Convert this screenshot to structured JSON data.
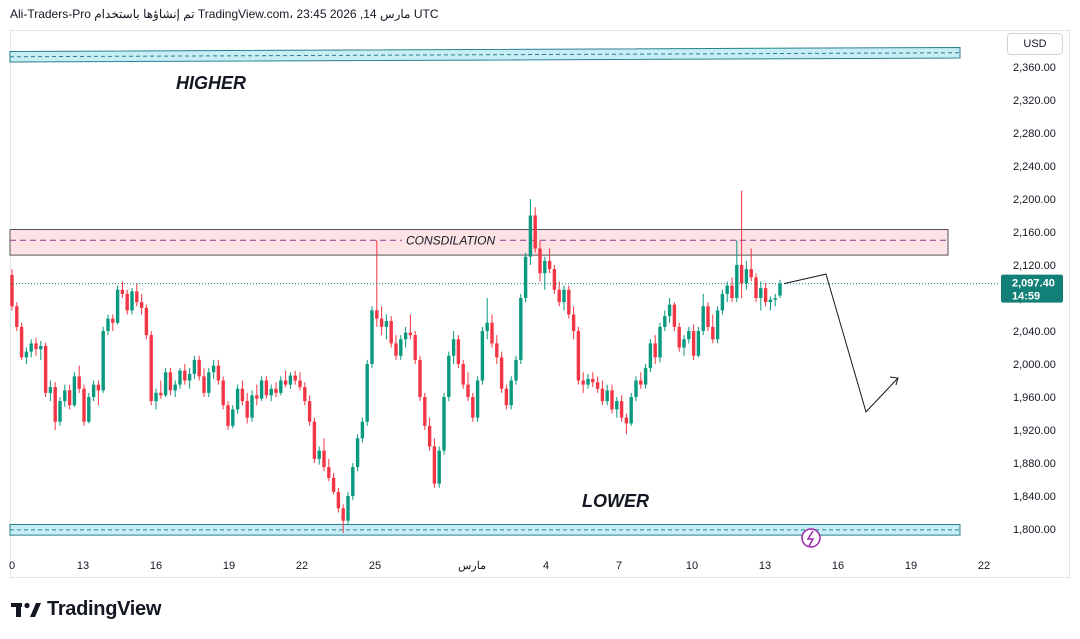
{
  "header": {
    "author": "Ali-Traders-Pro",
    "published_text": "تم إنشاؤها باستخدام",
    "site": "TradingView.com",
    "datetime_text": "مارس 14, 2026 23:45 UTC"
  },
  "footer": {
    "brand": "TradingView"
  },
  "colors": {
    "up": "#089981",
    "down": "#f23645",
    "zone_fill": "#c8eef5",
    "zone_stroke": "#2a7f8f",
    "consolidation_fill": "#fde2e6",
    "consolidation_line": "#8e3b8e",
    "price_badge": "#138077"
  },
  "chart_data": {
    "type": "candlestick",
    "currency": "USD",
    "price_range": [
      1790,
      2372
    ],
    "price_ticks": [
      "2,360.00",
      "2,320.00",
      "2,280.00",
      "2,240.00",
      "2,200.00",
      "2,160.00",
      "2,120.00",
      "2,080.00",
      "2,040.00",
      "2,000.00",
      "1,960.00",
      "1,920.00",
      "1,880.00",
      "1,840.00",
      "1,800.00"
    ],
    "time_ticks": [
      "0",
      "13",
      "16",
      "19",
      "22",
      "25",
      "مارس",
      "4",
      "7",
      "10",
      "13",
      "16",
      "19",
      "22"
    ],
    "last_price": "2,097.40",
    "countdown": "14:59",
    "zones": {
      "higher": {
        "label": "HIGHER",
        "low": 2366,
        "high": 2374
      },
      "lower": {
        "label": "LOWER",
        "low": 1795,
        "high": 1803
      },
      "consolidation": {
        "label": "CONSDILATION",
        "low": 2132,
        "high": 2163,
        "mid": 2150
      }
    },
    "projection": [
      {
        "t": 15.7,
        "price": 2109
      },
      {
        "t": 17.1,
        "price": 1942
      },
      {
        "t": 18.3,
        "price": 1983
      }
    ],
    "candles": [
      [
        2108,
        2115,
        2065,
        2070
      ],
      [
        2070,
        2075,
        2040,
        2045
      ],
      [
        2045,
        2050,
        2005,
        2008
      ],
      [
        2008,
        2020,
        2000,
        2015
      ],
      [
        2015,
        2030,
        2008,
        2025
      ],
      [
        2025,
        2032,
        2010,
        2018
      ],
      [
        2018,
        2028,
        2005,
        2022
      ],
      [
        2022,
        2026,
        1960,
        1965
      ],
      [
        1965,
        1980,
        1955,
        1972
      ],
      [
        1972,
        1978,
        1920,
        1930
      ],
      [
        1930,
        1960,
        1925,
        1955
      ],
      [
        1955,
        1975,
        1948,
        1968
      ],
      [
        1968,
        1975,
        1945,
        1950
      ],
      [
        1950,
        1990,
        1948,
        1985
      ],
      [
        1985,
        1998,
        1965,
        1970
      ],
      [
        1970,
        1975,
        1925,
        1930
      ],
      [
        1930,
        1965,
        1928,
        1960
      ],
      [
        1960,
        1980,
        1955,
        1975
      ],
      [
        1975,
        1980,
        1950,
        1968
      ],
      [
        1968,
        2045,
        1965,
        2040
      ],
      [
        2040,
        2060,
        2035,
        2055
      ],
      [
        2055,
        2060,
        2040,
        2050
      ],
      [
        2050,
        2095,
        2048,
        2090
      ],
      [
        2090,
        2100,
        2080,
        2085
      ],
      [
        2085,
        2090,
        2060,
        2065
      ],
      [
        2065,
        2092,
        2060,
        2088
      ],
      [
        2088,
        2098,
        2070,
        2075
      ],
      [
        2075,
        2085,
        2060,
        2068
      ],
      [
        2068,
        2072,
        2030,
        2035
      ],
      [
        2035,
        2040,
        1950,
        1955
      ],
      [
        1955,
        1970,
        1945,
        1965
      ],
      [
        1965,
        1980,
        1958,
        1962
      ],
      [
        1962,
        1995,
        1960,
        1990
      ],
      [
        1990,
        1995,
        1962,
        1968
      ],
      [
        1968,
        1980,
        1960,
        1975
      ],
      [
        1975,
        1995,
        1970,
        1992
      ],
      [
        1992,
        2000,
        1975,
        1980
      ],
      [
        1980,
        1995,
        1970,
        1988
      ],
      [
        1988,
        2010,
        1982,
        2005
      ],
      [
        2005,
        2010,
        1980,
        1985
      ],
      [
        1985,
        1995,
        1960,
        1965
      ],
      [
        1965,
        1995,
        1960,
        1990
      ],
      [
        1990,
        2005,
        1982,
        1998
      ],
      [
        1998,
        2005,
        1975,
        1980
      ],
      [
        1980,
        1985,
        1945,
        1950
      ],
      [
        1950,
        1955,
        1920,
        1925
      ],
      [
        1925,
        1950,
        1922,
        1945
      ],
      [
        1945,
        1975,
        1940,
        1970
      ],
      [
        1970,
        1980,
        1950,
        1955
      ],
      [
        1955,
        1965,
        1928,
        1935
      ],
      [
        1935,
        1968,
        1930,
        1962
      ],
      [
        1962,
        1975,
        1950,
        1958
      ],
      [
        1958,
        1985,
        1955,
        1980
      ],
      [
        1980,
        1985,
        1958,
        1962
      ],
      [
        1962,
        1975,
        1955,
        1970
      ],
      [
        1970,
        1978,
        1960,
        1965
      ],
      [
        1965,
        1985,
        1962,
        1980
      ],
      [
        1980,
        1992,
        1972,
        1975
      ],
      [
        1975,
        1990,
        1970,
        1986
      ],
      [
        1986,
        1992,
        1975,
        1980
      ],
      [
        1980,
        1990,
        1968,
        1972
      ],
      [
        1972,
        1978,
        1950,
        1955
      ],
      [
        1955,
        1962,
        1925,
        1930
      ],
      [
        1930,
        1935,
        1880,
        1885
      ],
      [
        1885,
        1900,
        1878,
        1895
      ],
      [
        1895,
        1910,
        1870,
        1875
      ],
      [
        1875,
        1885,
        1858,
        1862
      ],
      [
        1862,
        1868,
        1842,
        1845
      ],
      [
        1845,
        1850,
        1820,
        1825
      ],
      [
        1825,
        1830,
        1795,
        1810
      ],
      [
        1810,
        1845,
        1805,
        1840
      ],
      [
        1840,
        1880,
        1835,
        1875
      ],
      [
        1875,
        1915,
        1870,
        1910
      ],
      [
        1910,
        1935,
        1905,
        1930
      ],
      [
        1930,
        2005,
        1925,
        2000
      ],
      [
        2000,
        2070,
        1995,
        2065
      ],
      [
        2065,
        2150,
        2045,
        2055
      ],
      [
        2055,
        2070,
        2035,
        2045
      ],
      [
        2045,
        2060,
        2030,
        2052
      ],
      [
        2052,
        2058,
        2020,
        2025
      ],
      [
        2025,
        2035,
        2005,
        2010
      ],
      [
        2010,
        2035,
        2005,
        2030
      ],
      [
        2030,
        2045,
        2020,
        2038
      ],
      [
        2038,
        2060,
        2030,
        2035
      ],
      [
        2035,
        2040,
        2000,
        2005
      ],
      [
        2005,
        2010,
        1955,
        1960
      ],
      [
        1960,
        1965,
        1920,
        1925
      ],
      [
        1925,
        1935,
        1895,
        1900
      ],
      [
        1900,
        1910,
        1850,
        1855
      ],
      [
        1855,
        1900,
        1850,
        1895
      ],
      [
        1895,
        1965,
        1890,
        1960
      ],
      [
        1960,
        2015,
        1955,
        2010
      ],
      [
        2010,
        2040,
        2000,
        2030
      ],
      [
        2030,
        2035,
        1995,
        2000
      ],
      [
        2000,
        2005,
        1970,
        1975
      ],
      [
        1975,
        1990,
        1955,
        1960
      ],
      [
        1960,
        1965,
        1930,
        1935
      ],
      [
        1935,
        1985,
        1930,
        1980
      ],
      [
        1980,
        2045,
        1975,
        2040
      ],
      [
        2040,
        2080,
        2030,
        2050
      ],
      [
        2050,
        2060,
        2020,
        2025
      ],
      [
        2025,
        2035,
        2000,
        2008
      ],
      [
        2008,
        2015,
        1965,
        1970
      ],
      [
        1970,
        1975,
        1945,
        1950
      ],
      [
        1950,
        1985,
        1945,
        1980
      ],
      [
        1980,
        2010,
        1975,
        2005
      ],
      [
        2005,
        2085,
        2000,
        2080
      ],
      [
        2080,
        2135,
        2075,
        2130
      ],
      [
        2130,
        2200,
        2120,
        2180
      ],
      [
        2180,
        2190,
        2135,
        2140
      ],
      [
        2140,
        2150,
        2100,
        2110
      ],
      [
        2110,
        2130,
        2090,
        2125
      ],
      [
        2125,
        2140,
        2110,
        2115
      ],
      [
        2115,
        2120,
        2085,
        2090
      ],
      [
        2090,
        2100,
        2070,
        2075
      ],
      [
        2075,
        2095,
        2065,
        2090
      ],
      [
        2090,
        2095,
        2055,
        2060
      ],
      [
        2060,
        2070,
        2030,
        2040
      ],
      [
        2040,
        2045,
        1975,
        1980
      ],
      [
        1980,
        1990,
        1965,
        1975
      ],
      [
        1975,
        1988,
        1970,
        1982
      ],
      [
        1982,
        1990,
        1972,
        1978
      ],
      [
        1978,
        1985,
        1965,
        1970
      ],
      [
        1970,
        1980,
        1950,
        1955
      ],
      [
        1955,
        1975,
        1950,
        1968
      ],
      [
        1968,
        1975,
        1940,
        1945
      ],
      [
        1945,
        1960,
        1935,
        1955
      ],
      [
        1955,
        1962,
        1930,
        1935
      ],
      [
        1935,
        1940,
        1915,
        1928
      ],
      [
        1928,
        1965,
        1925,
        1960
      ],
      [
        1960,
        1985,
        1955,
        1980
      ],
      [
        1980,
        1990,
        1970,
        1975
      ],
      [
        1975,
        2000,
        1970,
        1995
      ],
      [
        1995,
        2030,
        1990,
        2025
      ],
      [
        2025,
        2035,
        2000,
        2008
      ],
      [
        2008,
        2050,
        2002,
        2045
      ],
      [
        2045,
        2065,
        2040,
        2058
      ],
      [
        2058,
        2080,
        2050,
        2072
      ],
      [
        2072,
        2075,
        2040,
        2045
      ],
      [
        2045,
        2050,
        2015,
        2020
      ],
      [
        2020,
        2035,
        2010,
        2030
      ],
      [
        2030,
        2045,
        2025,
        2040
      ],
      [
        2040,
        2048,
        2005,
        2010
      ],
      [
        2010,
        2045,
        2008,
        2040
      ],
      [
        2040,
        2085,
        2035,
        2070
      ],
      [
        2070,
        2075,
        2040,
        2045
      ],
      [
        2045,
        2060,
        2025,
        2030
      ],
      [
        2030,
        2070,
        2025,
        2065
      ],
      [
        2065,
        2090,
        2060,
        2085
      ],
      [
        2085,
        2100,
        2075,
        2095
      ],
      [
        2095,
        2105,
        2075,
        2080
      ],
      [
        2080,
        2150,
        2075,
        2120
      ],
      [
        2120,
        2210,
        2080,
        2098
      ],
      [
        2098,
        2125,
        2090,
        2115
      ],
      [
        2115,
        2140,
        2100,
        2105
      ],
      [
        2105,
        2110,
        2075,
        2080
      ],
      [
        2080,
        2100,
        2065,
        2092
      ],
      [
        2092,
        2098,
        2070,
        2075
      ],
      [
        2075,
        2082,
        2065,
        2078
      ],
      [
        2078,
        2085,
        2070,
        2080
      ],
      [
        2083,
        2102,
        2080,
        2097.4
      ]
    ]
  }
}
